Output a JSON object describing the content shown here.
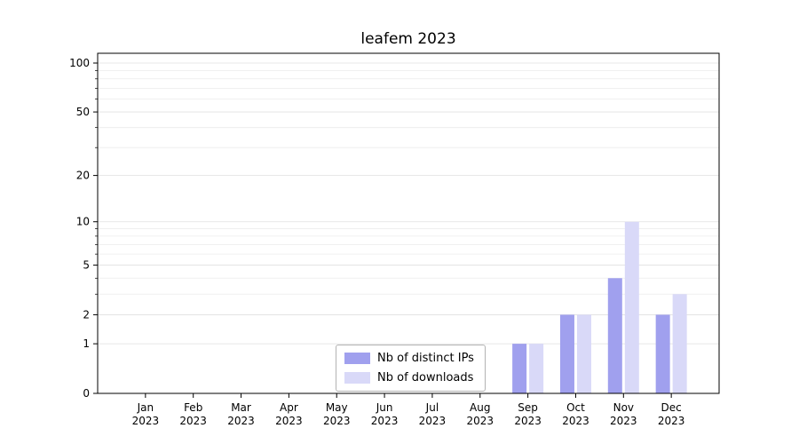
{
  "title": "leafem 2023",
  "chart_data": {
    "type": "bar",
    "title": "leafem 2023",
    "categories": [
      "Jan",
      "Feb",
      "Mar",
      "Apr",
      "May",
      "Jun",
      "Jul",
      "Aug",
      "Sep",
      "Oct",
      "Nov",
      "Dec"
    ],
    "year": "2023",
    "series": [
      {
        "name": "Nb of distinct IPs",
        "color": "#a0a0ee",
        "values": [
          0,
          0,
          0,
          0,
          0,
          0,
          0,
          0,
          1,
          2,
          4,
          2
        ]
      },
      {
        "name": "Nb of downloads",
        "color": "#d9d9f8",
        "values": [
          0,
          0,
          0,
          0,
          0,
          0,
          0,
          0,
          1,
          2,
          10,
          3
        ]
      }
    ],
    "xlabel": "",
    "ylabel": "",
    "y_scale": "log1p",
    "y_ticks": [
      0,
      1,
      2,
      5,
      10,
      20,
      50,
      100
    ],
    "y_minor_ticks": [
      3,
      4,
      6,
      7,
      8,
      9,
      30,
      40,
      60,
      70,
      80,
      90
    ],
    "ylim": [
      0,
      115
    ],
    "grid": "on",
    "legend_position": "bottom-center"
  },
  "colors": {
    "grid_major": "#e0e0e0",
    "grid_minor": "#ececec",
    "axis": "#000000",
    "background": "#ffffff"
  }
}
